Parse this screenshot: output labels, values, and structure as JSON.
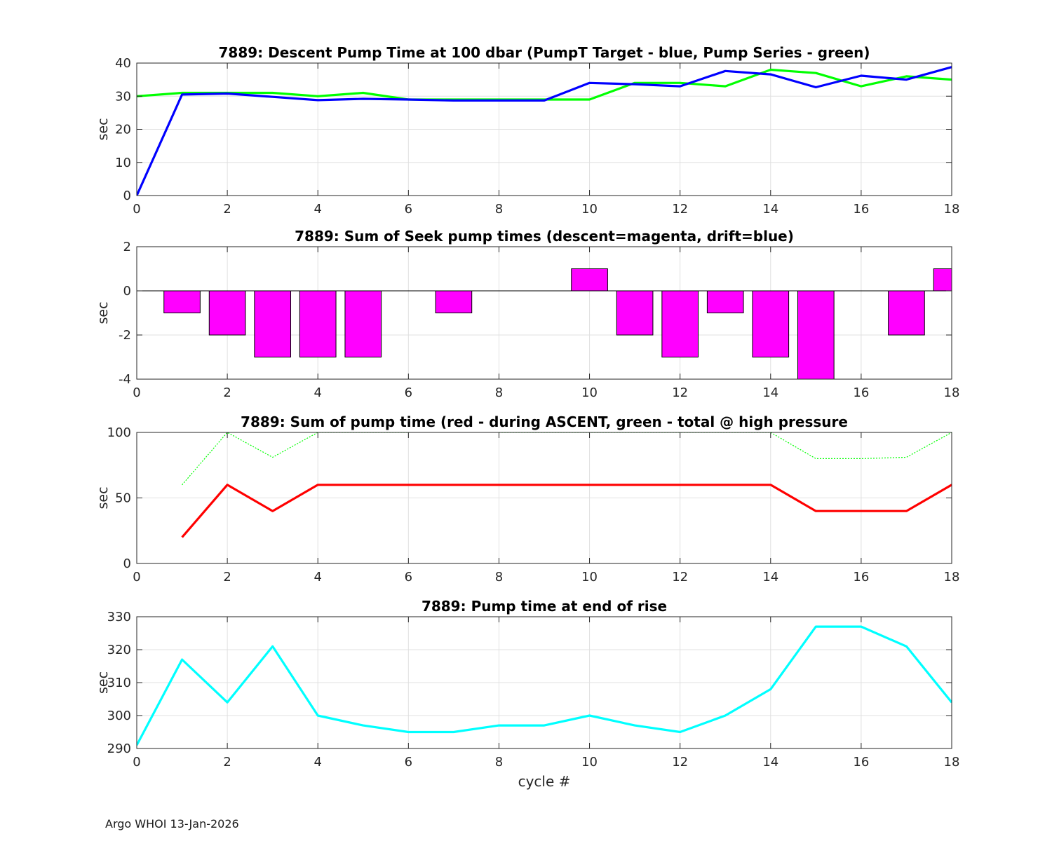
{
  "footer": "Argo WHOI 13-Jan-2026",
  "colors": {
    "blue": "#0000ff",
    "green": "#00ff00",
    "magenta": "#ff00ff",
    "red": "#ff0000",
    "cyan": "#00ffff",
    "grid": "#e0e0e0",
    "axis": "#262626"
  },
  "chart_data": [
    {
      "type": "line",
      "title": "7889: Descent Pump Time at 100 dbar (PumpT Target - blue, Pump Series - green)",
      "xlabel": "",
      "ylabel": "sec",
      "xlim": [
        0,
        18
      ],
      "ylim": [
        0,
        40
      ],
      "xticks": [
        0,
        2,
        4,
        6,
        8,
        10,
        12,
        14,
        16,
        18
      ],
      "yticks": [
        0,
        10,
        20,
        30,
        40
      ],
      "grid": true,
      "series": [
        {
          "name": "Pump Series",
          "color": "green",
          "style": "solid",
          "x": [
            0,
            1,
            2,
            3,
            4,
            5,
            6,
            7,
            8,
            9,
            10,
            11,
            12,
            13,
            14,
            15,
            16,
            17,
            18
          ],
          "values": [
            30,
            31,
            31,
            31,
            30,
            31,
            29,
            29,
            29,
            29,
            29,
            34,
            34,
            33,
            38,
            37,
            33,
            36,
            35
          ]
        },
        {
          "name": "PumpT Target",
          "color": "blue",
          "style": "solid",
          "x": [
            0,
            1,
            2,
            3,
            4,
            5,
            6,
            7,
            8,
            9,
            10,
            11,
            12,
            13,
            14,
            15,
            16,
            17,
            18
          ],
          "values": [
            0,
            30.5,
            30.8,
            29.8,
            28.8,
            29.2,
            29,
            28.7,
            28.7,
            28.7,
            34,
            33.6,
            33,
            37.6,
            36.6,
            32.7,
            36.2,
            35,
            38.8
          ]
        }
      ]
    },
    {
      "type": "bar",
      "title": "7889: Sum of Seek pump times (descent=magenta, drift=blue)",
      "xlabel": "",
      "ylabel": "sec",
      "xlim": [
        0,
        18
      ],
      "ylim": [
        -4,
        2
      ],
      "xticks": [
        0,
        2,
        4,
        6,
        8,
        10,
        12,
        14,
        16,
        18
      ],
      "yticks": [
        -4,
        -2,
        0,
        2
      ],
      "grid": true,
      "bar_width": 0.8,
      "series": [
        {
          "name": "descent",
          "color": "magenta",
          "x": [
            1,
            2,
            3,
            4,
            5,
            7,
            10,
            11,
            12,
            13,
            14,
            15,
            17,
            18
          ],
          "values": [
            -1,
            -2,
            -3,
            -3,
            -3,
            -1,
            1,
            -2,
            -3,
            -1,
            -3,
            -4,
            -2,
            1
          ]
        }
      ]
    },
    {
      "type": "line",
      "title": "7889: Sum of pump time (red - during ASCENT, green - total @ high pressure",
      "xlabel": "",
      "ylabel": "sec",
      "xlim": [
        0,
        18
      ],
      "ylim": [
        0,
        100
      ],
      "xticks": [
        0,
        2,
        4,
        6,
        8,
        10,
        12,
        14,
        16,
        18
      ],
      "yticks": [
        0,
        50,
        100
      ],
      "grid": true,
      "series": [
        {
          "name": "total @ high pressure",
          "color": "green",
          "style": "dotted",
          "x": [
            1,
            2,
            3,
            4,
            5,
            6,
            7,
            8,
            9,
            10,
            11,
            12,
            13,
            14,
            15,
            16,
            17,
            18
          ],
          "values": [
            60,
            100,
            81,
            100,
            100,
            100,
            101,
            100,
            100,
            100,
            100,
            100,
            100,
            100,
            80,
            80,
            81,
            100
          ]
        },
        {
          "name": "during ASCENT",
          "color": "red",
          "style": "solid",
          "x": [
            1,
            2,
            3,
            4,
            5,
            6,
            7,
            8,
            9,
            10,
            11,
            12,
            13,
            14,
            15,
            16,
            17,
            18
          ],
          "values": [
            20,
            60,
            40,
            60,
            60,
            60,
            60,
            60,
            60,
            60,
            60,
            60,
            60,
            60,
            40,
            40,
            40,
            60
          ]
        }
      ]
    },
    {
      "type": "line",
      "title": "7889: Pump time at end of rise",
      "xlabel": "cycle #",
      "ylabel": "sec",
      "xlim": [
        0,
        18
      ],
      "ylim": [
        290,
        330
      ],
      "xticks": [
        0,
        2,
        4,
        6,
        8,
        10,
        12,
        14,
        16,
        18
      ],
      "yticks": [
        290,
        300,
        310,
        320,
        330
      ],
      "grid": true,
      "series": [
        {
          "name": "end of rise",
          "color": "cyan",
          "style": "solid",
          "x": [
            0,
            1,
            2,
            3,
            4,
            5,
            6,
            7,
            8,
            9,
            10,
            11,
            12,
            13,
            14,
            15,
            16,
            17,
            18
          ],
          "values": [
            291,
            317,
            304,
            321,
            300,
            297,
            295,
            295,
            297,
            297,
            300,
            297,
            295,
            300,
            308,
            327,
            327,
            321,
            304
          ]
        }
      ]
    }
  ]
}
